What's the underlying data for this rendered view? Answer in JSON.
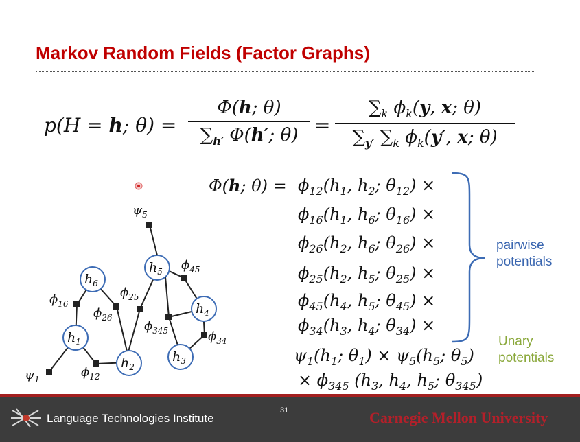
{
  "slide": {
    "title": "Markov Random Fields (Factor Graphs)",
    "page_number": "31",
    "institute": "Language Technologies Institute",
    "university": "Carnegie Mellon University"
  },
  "equation": {
    "lhs": "p(H = h; θ) =",
    "frac1_num": "Φ(h; θ)",
    "frac1_den": "∑h′ Φ(h′; θ)",
    "equals": "=",
    "frac2_num": "∑k ϕk(y, x; θ)",
    "frac2_den": "∑y′ ∑k ϕk(y′, x; θ)"
  },
  "factorization": {
    "lhs": "Φ(h; θ) =",
    "pairwise_lines": [
      "ϕ12(h1, h2; θ12) ×",
      "ϕ16(h1, h6; θ16) ×",
      "ϕ26(h2, h6; θ26) ×",
      "ϕ25(h2, h5; θ25) ×",
      "ϕ45(h4, h5; θ45) ×",
      "ϕ34(h3, h4; θ34) ×"
    ],
    "unary_line": "ψ1(h1; θ1) × ψ5(h5; θ5)",
    "higher_line": "× ϕ345 (h3, h4, h5; θ345)"
  },
  "labels": {
    "pairwise": [
      "pairwise",
      "potentials"
    ],
    "unary": [
      "Unary",
      "potentials"
    ]
  },
  "graph": {
    "nodes": [
      "h1",
      "h2",
      "h3",
      "h4",
      "h5",
      "h6"
    ],
    "factors": [
      "ψ1",
      "ψ5",
      "ϕ12",
      "ϕ16",
      "ϕ26",
      "ϕ25",
      "ϕ45",
      "ϕ34",
      "ϕ345"
    ]
  },
  "colors": {
    "title": "#c00000",
    "node_border": "#3d6cb5",
    "pairwise_label": "#3a66b0",
    "unary_label": "#8aa83b",
    "footer_bg": "#3c3c3c",
    "footer_rule": "#a31f1f",
    "cmu_text": "#b3202a"
  }
}
